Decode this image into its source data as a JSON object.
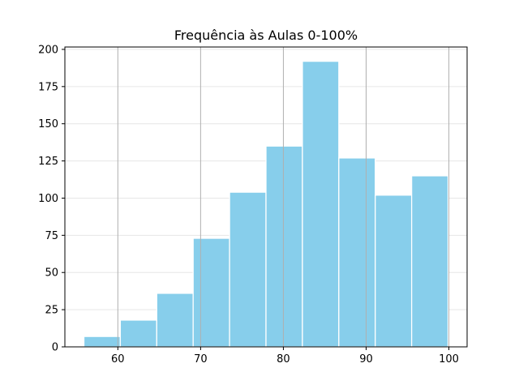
{
  "chart_data": {
    "type": "bar",
    "title": "Frequência às Aulas 0-100%",
    "xlabel": "",
    "ylabel": "",
    "bin_edges": [
      55.9,
      60.3,
      64.7,
      69.1,
      73.5,
      77.9,
      82.3,
      86.7,
      91.1,
      95.5,
      99.9
    ],
    "values": [
      7,
      18,
      36,
      73,
      104,
      135,
      192,
      127,
      102,
      115
    ],
    "xlim": [
      53.6,
      102.2
    ],
    "ylim": [
      0,
      201.6
    ],
    "x_ticks": [
      60,
      70,
      80,
      90,
      100
    ],
    "y_ticks": [
      0,
      25,
      50,
      75,
      100,
      125,
      150,
      175,
      200
    ],
    "x_grid": true,
    "y_grid": true,
    "bar_color": "#87ceeb",
    "bar_edge_color": "#ffffff",
    "x_grid_color": "#b0b0b0",
    "y_grid_color": "#e6e6e6"
  }
}
